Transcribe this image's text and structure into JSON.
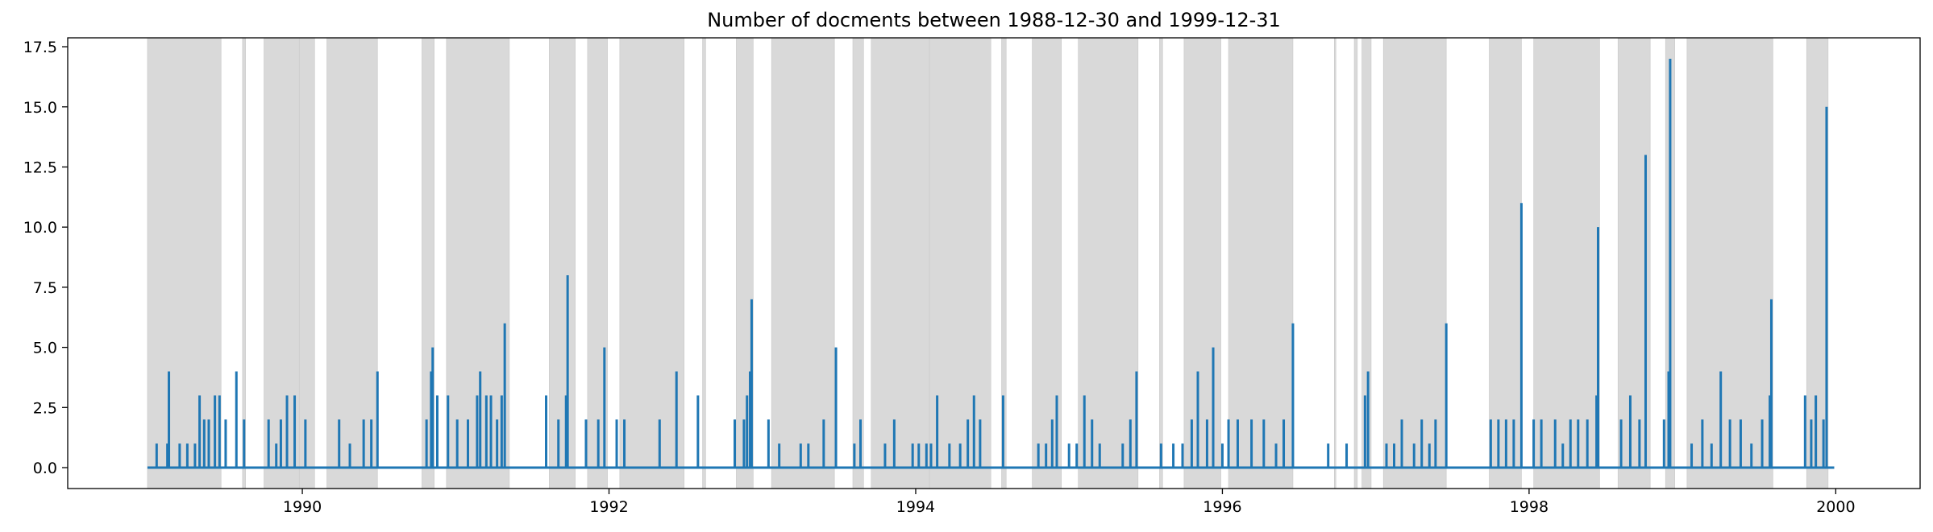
{
  "chart_data": {
    "type": "line",
    "title": "Number of docments between 1988-12-30 and 1999-12-31",
    "xlabel": "",
    "ylabel": "",
    "xlim": [
      1988.47,
      2000.55
    ],
    "ylim": [
      -0.87,
      17.87
    ],
    "x_ticks": [
      1990,
      1992,
      1994,
      1996,
      1998,
      2000
    ],
    "x_tick_labels": [
      "1990",
      "1992",
      "1994",
      "1996",
      "1998",
      "2000"
    ],
    "y_ticks": [
      0.0,
      2.5,
      5.0,
      7.5,
      10.0,
      12.5,
      15.0,
      17.5
    ],
    "y_tick_labels": [
      "0.0",
      "2.5",
      "5.0",
      "7.5",
      "10.0",
      "12.5",
      "15.0",
      "17.5"
    ],
    "grid": false,
    "series_color": "#1f77b4",
    "band_color": "#d9d9d9",
    "baseline": {
      "start": 1988.99,
      "end": 1999.99,
      "value": 0
    },
    "shaded_periods": [
      [
        1988.99,
        1989.47
      ],
      [
        1989.61,
        1989.63
      ],
      [
        1989.75,
        1989.98
      ],
      [
        1989.98,
        1990.08
      ],
      [
        1990.16,
        1990.49
      ],
      [
        1990.78,
        1990.86
      ],
      [
        1990.94,
        1991.35
      ],
      [
        1991.61,
        1991.78
      ],
      [
        1991.86,
        1991.99
      ],
      [
        1992.07,
        1992.49
      ],
      [
        1992.61,
        1992.63
      ],
      [
        1992.83,
        1992.94
      ],
      [
        1993.06,
        1993.47
      ],
      [
        1993.59,
        1993.66
      ],
      [
        1993.71,
        1994.09
      ],
      [
        1994.09,
        1994.49
      ],
      [
        1994.56,
        1994.59
      ],
      [
        1994.76,
        1994.95
      ],
      [
        1995.06,
        1995.45
      ],
      [
        1995.59,
        1995.61
      ],
      [
        1995.75,
        1995.99
      ],
      [
        1996.04,
        1996.46
      ],
      [
        1996.73,
        1996.74
      ],
      [
        1996.86,
        1996.88
      ],
      [
        1996.91,
        1996.97
      ],
      [
        1997.05,
        1997.46
      ],
      [
        1997.74,
        1997.95
      ],
      [
        1998.03,
        1998.46
      ],
      [
        1998.58,
        1998.79
      ],
      [
        1998.89,
        1998.95
      ],
      [
        1999.03,
        1999.59
      ],
      [
        1999.81,
        1999.95
      ]
    ],
    "spikes": [
      [
        1989.05,
        1
      ],
      [
        1989.12,
        1
      ],
      [
        1989.13,
        4
      ],
      [
        1989.2,
        1
      ],
      [
        1989.25,
        1
      ],
      [
        1989.3,
        1
      ],
      [
        1989.33,
        3
      ],
      [
        1989.36,
        2
      ],
      [
        1989.39,
        2
      ],
      [
        1989.43,
        3
      ],
      [
        1989.46,
        3
      ],
      [
        1989.5,
        2
      ],
      [
        1989.57,
        4
      ],
      [
        1989.62,
        2
      ],
      [
        1989.78,
        2
      ],
      [
        1989.83,
        1
      ],
      [
        1989.86,
        2
      ],
      [
        1989.9,
        3
      ],
      [
        1989.95,
        3
      ],
      [
        1990.02,
        2
      ],
      [
        1990.24,
        2
      ],
      [
        1990.31,
        1
      ],
      [
        1990.4,
        2
      ],
      [
        1990.45,
        2
      ],
      [
        1990.49,
        4
      ],
      [
        1990.81,
        2
      ],
      [
        1990.84,
        4
      ],
      [
        1990.85,
        5
      ],
      [
        1990.88,
        3
      ],
      [
        1990.95,
        3
      ],
      [
        1991.01,
        2
      ],
      [
        1991.08,
        2
      ],
      [
        1991.14,
        3
      ],
      [
        1991.16,
        4
      ],
      [
        1991.2,
        3
      ],
      [
        1991.23,
        3
      ],
      [
        1991.27,
        2
      ],
      [
        1991.3,
        3
      ],
      [
        1991.32,
        6
      ],
      [
        1991.59,
        3
      ],
      [
        1991.67,
        2
      ],
      [
        1991.72,
        3
      ],
      [
        1991.73,
        8
      ],
      [
        1991.85,
        2
      ],
      [
        1991.93,
        2
      ],
      [
        1991.97,
        5
      ],
      [
        1992.05,
        2
      ],
      [
        1992.1,
        2
      ],
      [
        1992.33,
        2
      ],
      [
        1992.44,
        4
      ],
      [
        1992.58,
        3
      ],
      [
        1992.82,
        2
      ],
      [
        1992.88,
        2
      ],
      [
        1992.9,
        3
      ],
      [
        1992.92,
        4
      ],
      [
        1992.93,
        7
      ],
      [
        1993.04,
        2
      ],
      [
        1993.11,
        1
      ],
      [
        1993.25,
        1
      ],
      [
        1993.3,
        1
      ],
      [
        1993.4,
        2
      ],
      [
        1993.48,
        5
      ],
      [
        1993.6,
        1
      ],
      [
        1993.64,
        2
      ],
      [
        1993.8,
        1
      ],
      [
        1993.86,
        2
      ],
      [
        1993.98,
        1
      ],
      [
        1994.02,
        1
      ],
      [
        1994.07,
        1
      ],
      [
        1994.1,
        1
      ],
      [
        1994.14,
        3
      ],
      [
        1994.22,
        1
      ],
      [
        1994.29,
        1
      ],
      [
        1994.34,
        2
      ],
      [
        1994.38,
        3
      ],
      [
        1994.42,
        2
      ],
      [
        1994.57,
        3
      ],
      [
        1994.8,
        1
      ],
      [
        1994.85,
        1
      ],
      [
        1994.89,
        2
      ],
      [
        1994.92,
        3
      ],
      [
        1995.0,
        1
      ],
      [
        1995.05,
        1
      ],
      [
        1995.1,
        3
      ],
      [
        1995.15,
        2
      ],
      [
        1995.2,
        1
      ],
      [
        1995.35,
        1
      ],
      [
        1995.4,
        2
      ],
      [
        1995.44,
        4
      ],
      [
        1995.6,
        1
      ],
      [
        1995.68,
        1
      ],
      [
        1995.74,
        1
      ],
      [
        1995.8,
        2
      ],
      [
        1995.84,
        4
      ],
      [
        1995.9,
        2
      ],
      [
        1995.94,
        5
      ],
      [
        1996.0,
        1
      ],
      [
        1996.04,
        2
      ],
      [
        1996.1,
        2
      ],
      [
        1996.19,
        2
      ],
      [
        1996.27,
        2
      ],
      [
        1996.35,
        1
      ],
      [
        1996.4,
        2
      ],
      [
        1996.46,
        6
      ],
      [
        1996.69,
        1
      ],
      [
        1996.81,
        1
      ],
      [
        1996.93,
        3
      ],
      [
        1996.95,
        4
      ],
      [
        1997.07,
        1
      ],
      [
        1997.12,
        1
      ],
      [
        1997.17,
        2
      ],
      [
        1997.25,
        1
      ],
      [
        1997.3,
        2
      ],
      [
        1997.35,
        1
      ],
      [
        1997.39,
        2
      ],
      [
        1997.46,
        6
      ],
      [
        1997.75,
        2
      ],
      [
        1997.8,
        2
      ],
      [
        1997.85,
        2
      ],
      [
        1997.9,
        2
      ],
      [
        1997.95,
        11
      ],
      [
        1998.03,
        2
      ],
      [
        1998.08,
        2
      ],
      [
        1998.17,
        2
      ],
      [
        1998.22,
        1
      ],
      [
        1998.27,
        2
      ],
      [
        1998.32,
        2
      ],
      [
        1998.38,
        2
      ],
      [
        1998.44,
        3
      ],
      [
        1998.45,
        10
      ],
      [
        1998.6,
        2
      ],
      [
        1998.66,
        3
      ],
      [
        1998.72,
        2
      ],
      [
        1998.76,
        13
      ],
      [
        1998.88,
        2
      ],
      [
        1998.91,
        4
      ],
      [
        1998.92,
        17
      ],
      [
        1999.06,
        1
      ],
      [
        1999.13,
        2
      ],
      [
        1999.19,
        1
      ],
      [
        1999.25,
        4
      ],
      [
        1999.31,
        2
      ],
      [
        1999.38,
        2
      ],
      [
        1999.45,
        1
      ],
      [
        1999.52,
        2
      ],
      [
        1999.57,
        3
      ],
      [
        1999.58,
        7
      ],
      [
        1999.8,
        3
      ],
      [
        1999.84,
        2
      ],
      [
        1999.87,
        3
      ],
      [
        1999.92,
        2
      ],
      [
        1999.94,
        15
      ]
    ]
  }
}
